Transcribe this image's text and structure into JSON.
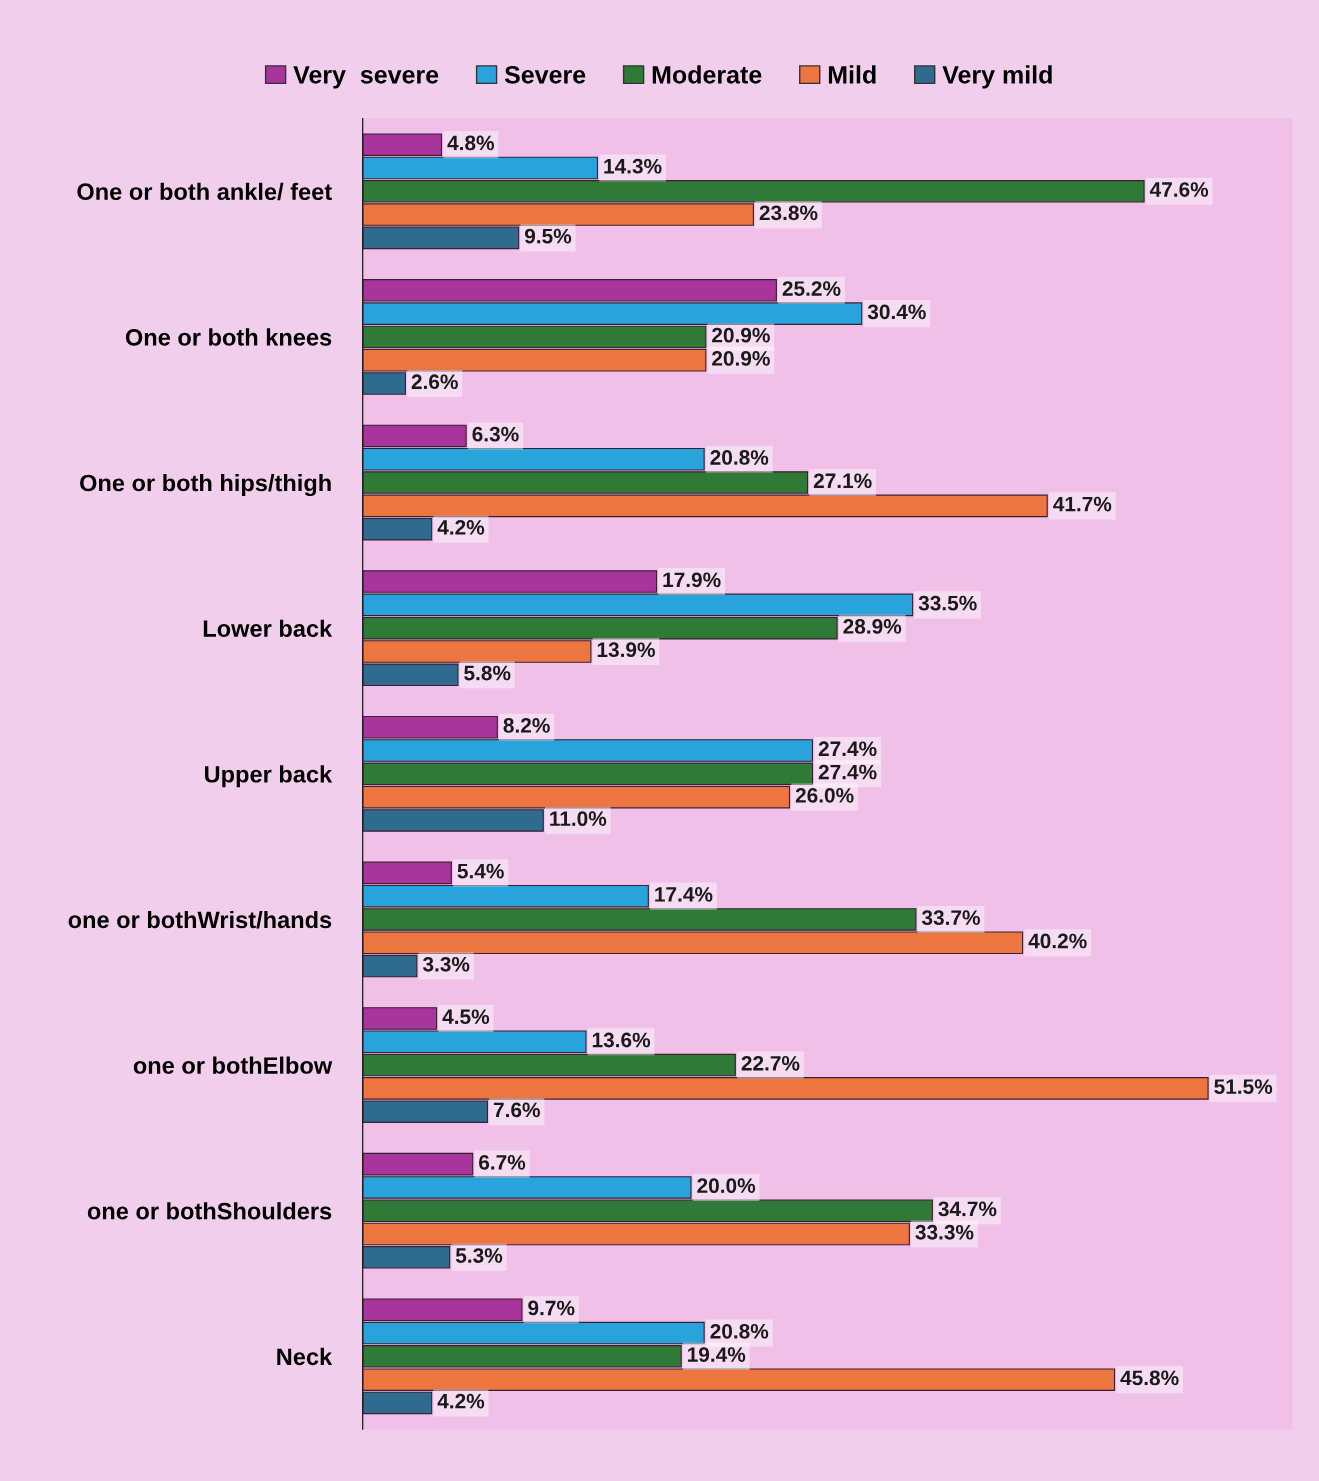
{
  "chart_data": {
    "type": "bar",
    "orientation": "horizontal",
    "legend": "top",
    "grid": false,
    "categories": [
      "One or both ankle/ feet",
      "One or both knees",
      "One or both hips/thigh",
      "Lower back",
      "Upper back",
      "one or bothWrist/hands",
      "one or bothElbow",
      "one or bothShoulders",
      "Neck"
    ],
    "series": [
      {
        "name": "Very  severe",
        "color": "#a8359c",
        "values": [
          4.8,
          25.2,
          6.3,
          17.9,
          8.2,
          5.4,
          4.5,
          6.7,
          9.7
        ],
        "value_labels": [
          "4.8%",
          "25.2%",
          "6.3%",
          "17.9%",
          "8.2%",
          "5.4%",
          "4.5%",
          "6.7%",
          "9.7%"
        ]
      },
      {
        "name": "Severe",
        "color": "#29a3dc",
        "values": [
          14.3,
          30.4,
          20.8,
          33.5,
          27.4,
          17.4,
          13.6,
          20.0,
          20.8
        ],
        "value_labels": [
          "14.3%",
          "30.4%",
          "20.8%",
          "33.5%",
          "27.4%",
          "17.4%",
          "13.6%",
          "20.0%",
          "20.8%"
        ]
      },
      {
        "name": "Moderate",
        "color": "#2f7a36",
        "values": [
          47.6,
          20.9,
          27.1,
          28.9,
          27.4,
          33.7,
          22.7,
          34.7,
          19.4
        ],
        "value_labels": [
          "47.6%",
          "20.9%",
          "27.1%",
          "28.9%",
          "27.4%",
          "33.7%",
          "22.7%",
          "34.7%",
          "19.4%"
        ]
      },
      {
        "name": "Mild",
        "color": "#ec7540",
        "values": [
          23.8,
          20.9,
          41.7,
          13.9,
          26.0,
          40.2,
          51.5,
          33.3,
          45.8
        ],
        "value_labels": [
          "23.8%",
          "20.9%",
          "41.7%",
          "13.9%",
          "26.0%",
          "40.2%",
          "51.5%",
          "33.3%",
          "45.8%"
        ]
      },
      {
        "name": "Very mild",
        "color": "#2f6b8f",
        "values": [
          9.5,
          2.6,
          4.2,
          5.8,
          11.0,
          3.3,
          7.6,
          5.3,
          4.2
        ],
        "value_labels": [
          "9.5%",
          "2.6%",
          "4.2%",
          "5.8%",
          "11.0%",
          "3.3%",
          "7.6%",
          "5.3%",
          "4.2%"
        ]
      }
    ]
  }
}
